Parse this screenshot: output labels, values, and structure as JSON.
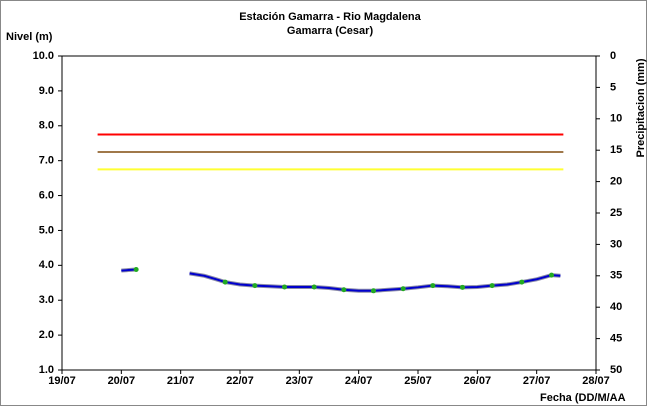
{
  "chart_data": {
    "type": "line",
    "title": "Estación Gamarra - Rio Magdalena",
    "subtitle": "Gamarra (Cesar)",
    "y_label": "Nivel (m)",
    "y2_label": "Precipitacion (mm)",
    "x_label": "Fecha (DD/M/AA",
    "xlim": [
      19,
      28
    ],
    "xticks": [
      {
        "value": 19,
        "label": "19/07"
      },
      {
        "value": 20,
        "label": "20/07"
      },
      {
        "value": 21,
        "label": "21/07"
      },
      {
        "value": 22,
        "label": "22/07"
      },
      {
        "value": 23,
        "label": "23/07"
      },
      {
        "value": 24,
        "label": "24/07"
      },
      {
        "value": 25,
        "label": "25/07"
      },
      {
        "value": 26,
        "label": "26/07"
      },
      {
        "value": 27,
        "label": "27/07"
      },
      {
        "value": 28,
        "label": "28/07"
      }
    ],
    "ylim": [
      1,
      10
    ],
    "yticks": [
      {
        "value": 1,
        "label": "1.0"
      },
      {
        "value": 2,
        "label": "2.0"
      },
      {
        "value": 3,
        "label": "3.0"
      },
      {
        "value": 4,
        "label": "4.0"
      },
      {
        "value": 5,
        "label": "5.0"
      },
      {
        "value": 6,
        "label": "6.0"
      },
      {
        "value": 7,
        "label": "7.0"
      },
      {
        "value": 8,
        "label": "8.0"
      },
      {
        "value": 9,
        "label": "9.0"
      },
      {
        "value": 10,
        "label": "10.0"
      }
    ],
    "y2lim": [
      50,
      0
    ],
    "y2ticks": [
      0,
      5,
      10,
      15,
      20,
      25,
      30,
      35,
      40,
      45,
      50
    ],
    "thresholds": [
      {
        "value": 7.75,
        "color": "#ff0000",
        "x": [
          19.6,
          27.45
        ]
      },
      {
        "value": 7.25,
        "color": "#a0784a",
        "x": [
          19.6,
          27.45
        ]
      },
      {
        "value": 6.75,
        "color": "#ffff33",
        "x": [
          19.6,
          27.45
        ]
      }
    ],
    "series": [
      {
        "color": "#0000cc",
        "outline": "#8c8ca8",
        "line": true,
        "x": [
          20.0,
          20.25,
          20.3,
          21.15,
          21.4,
          21.6,
          21.75,
          22.0,
          22.25,
          22.5,
          22.75,
          23.0,
          23.25,
          23.5,
          23.75,
          24.0,
          24.25,
          24.5,
          24.75,
          25.0,
          25.25,
          25.5,
          25.75,
          26.0,
          26.25,
          26.5,
          26.75,
          27.0,
          27.25,
          27.4
        ],
        "values": [
          3.85,
          3.88,
          null,
          3.77,
          3.7,
          3.6,
          3.52,
          3.45,
          3.42,
          3.4,
          3.38,
          3.38,
          3.38,
          3.35,
          3.3,
          3.27,
          3.27,
          3.3,
          3.33,
          3.37,
          3.42,
          3.4,
          3.37,
          3.38,
          3.42,
          3.45,
          3.52,
          3.6,
          3.72,
          3.7
        ]
      },
      {
        "color": "#22aa22",
        "line": false,
        "marker": true,
        "x": [
          20.25,
          21.75,
          22.25,
          22.75,
          23.25,
          23.75,
          24.25,
          24.75,
          25.25,
          25.75,
          26.25,
          26.75,
          27.25
        ],
        "values": [
          3.88,
          3.52,
          3.42,
          3.38,
          3.38,
          3.3,
          3.27,
          3.33,
          3.42,
          3.37,
          3.42,
          3.52,
          3.72
        ]
      }
    ]
  }
}
